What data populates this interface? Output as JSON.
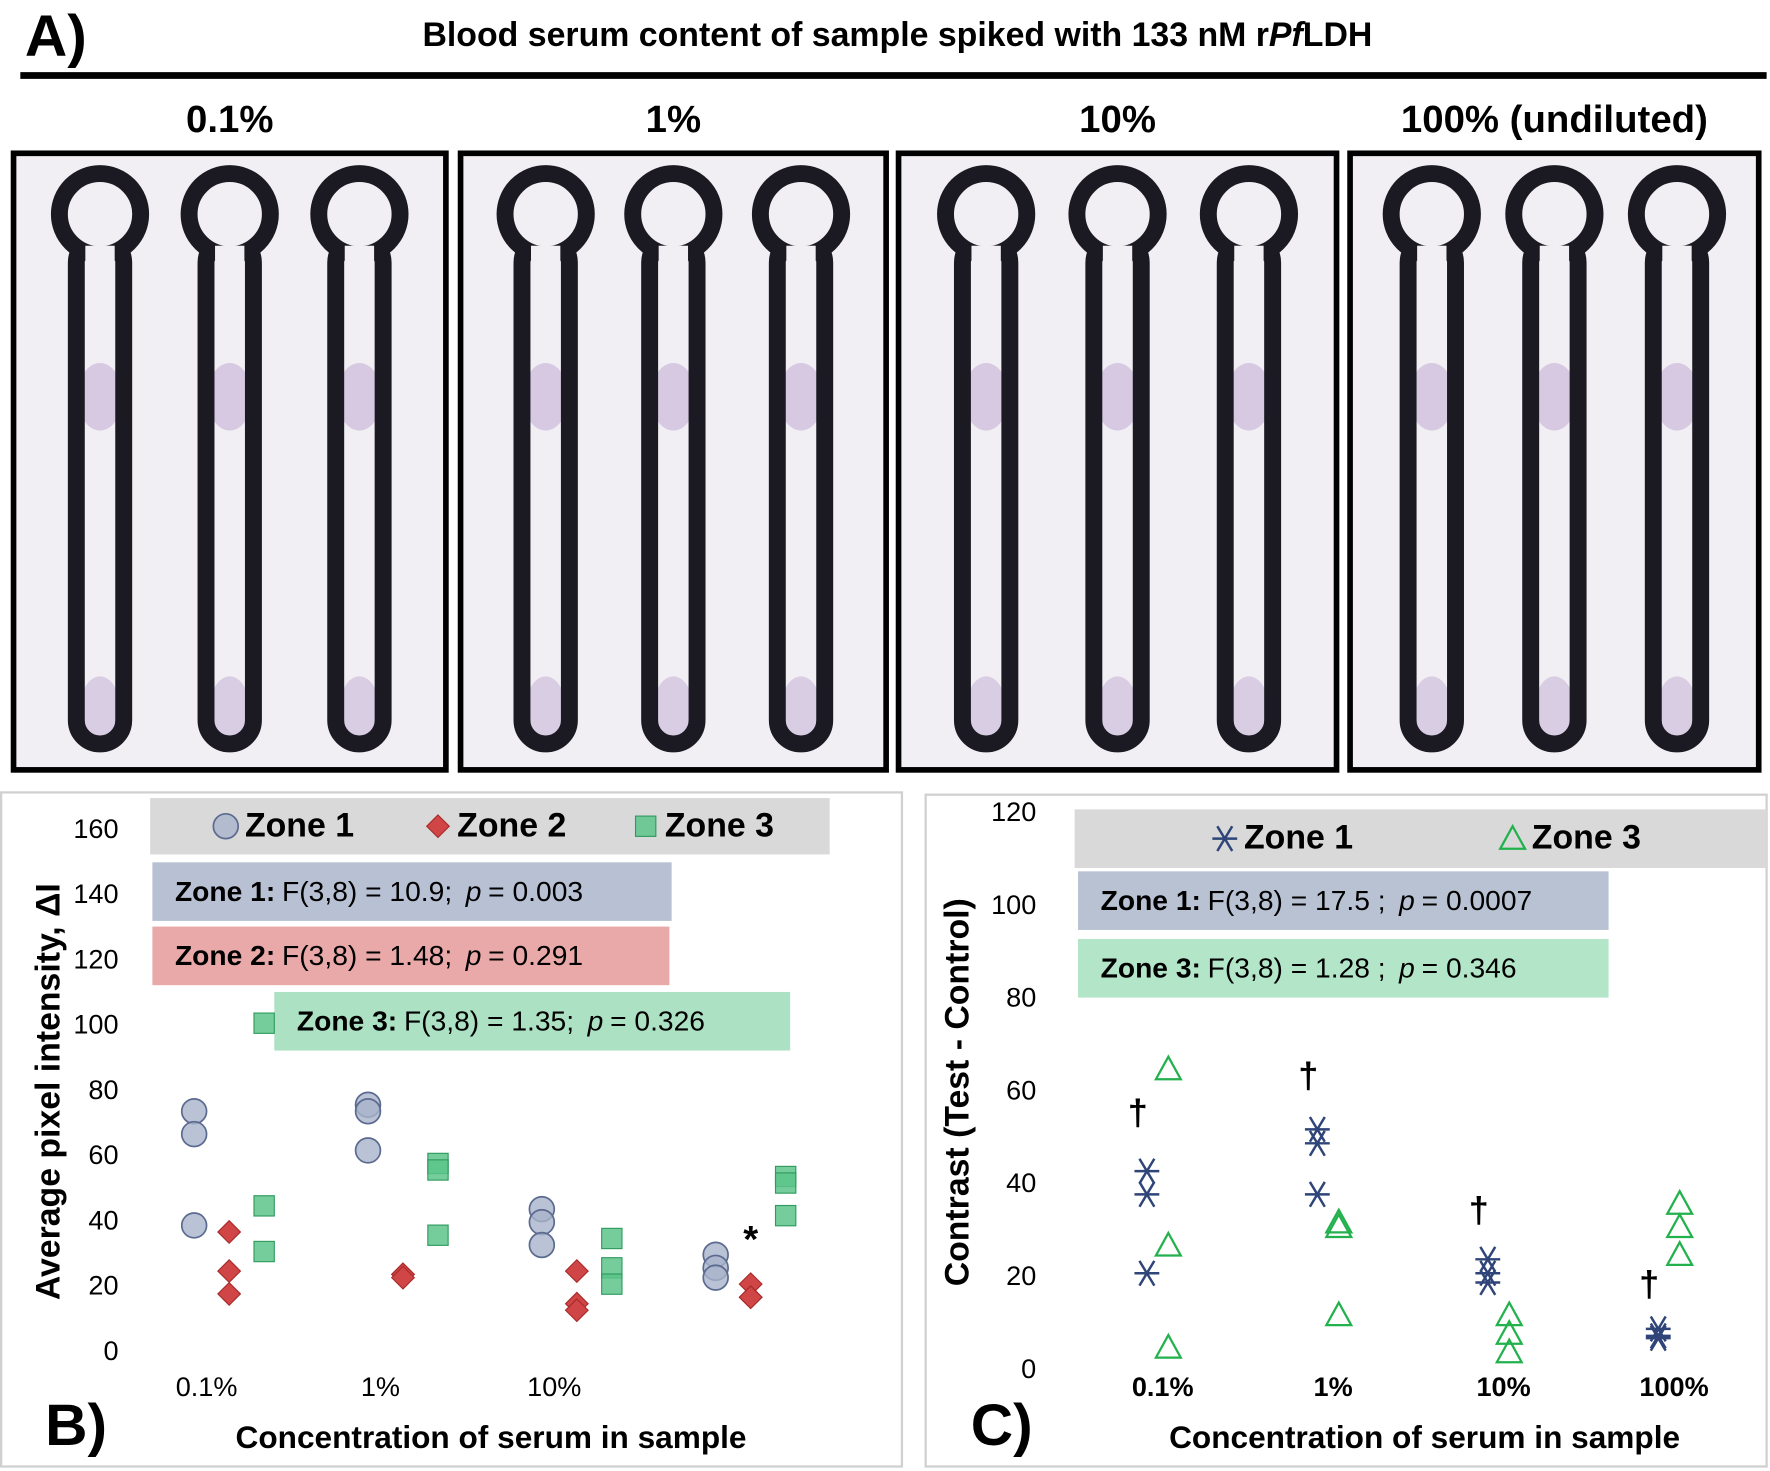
{
  "panel_a": {
    "label": "A)",
    "title_parts": [
      "Blood serum content of sample spiked with 133 nM r",
      "Pf",
      "LDH"
    ],
    "columns": [
      "0.1%",
      "1%",
      "10%",
      "100% (undiluted)"
    ]
  },
  "chart_data": [
    {
      "type": "scatter",
      "panel_label": "B)",
      "x_label": "Concentration of serum in sample",
      "y_label": "Average pixel intensity, ΔI",
      "categories": [
        "0.1%",
        "1%",
        "10%",
        null
      ],
      "ylim": [
        0,
        160
      ],
      "yticks": [
        0,
        20,
        40,
        60,
        80,
        100,
        120,
        140,
        160
      ],
      "series": [
        {
          "name": "Zone 1",
          "marker": "circle",
          "color": "#a9b3cb",
          "values": [
            [
              74,
              67,
              39
            ],
            [
              76,
              74,
              62
            ],
            [
              44,
              40,
              33
            ],
            [
              30,
              26,
              23
            ]
          ]
        },
        {
          "name": "Zone 2",
          "marker": "diamond",
          "color": "#d04545",
          "values": [
            [
              37,
              25,
              18
            ],
            [
              24,
              24,
              23
            ],
            [
              25,
              15,
              13
            ],
            [
              21,
              17,
              17
            ]
          ]
        },
        {
          "name": "Zone 3",
          "marker": "square",
          "color": "#5cc48a",
          "values": [
            [
              101,
              45,
              31
            ],
            [
              58,
              56,
              36
            ],
            [
              35,
              26,
              21
            ],
            [
              54,
              52,
              42
            ]
          ]
        }
      ],
      "stats": [
        {
          "zone": "Zone 1:",
          "text": "F(3,8) = 10.9;",
          "p": "p",
          "p_text": "= 0.003",
          "color": "#b8c1d4"
        },
        {
          "zone": "Zone 2:",
          "text": "F(3,8) =  1.48;",
          "p": "p",
          "p_text": "= 0.291",
          "color": "#eaa9a9"
        },
        {
          "zone": "Zone 3:",
          "text": "F(3,8) =  1.35;",
          "p": "p",
          "p_text": "= 0.326",
          "color": "#ace2c3"
        }
      ],
      "annotations": [
        {
          "text": "*",
          "y": 36
        }
      ]
    },
    {
      "type": "scatter",
      "panel_label": "C)",
      "x_label": "Concentration of serum in sample",
      "y_label": "Contrast (Test - Control)",
      "categories": [
        "0.1%",
        "1%",
        "10%",
        "100%"
      ],
      "ylim": [
        0,
        120
      ],
      "yticks": [
        0,
        20,
        40,
        60,
        80,
        100,
        120
      ],
      "series": [
        {
          "name": "Zone 1",
          "marker": "asterisk",
          "color": "#2f4478",
          "values": [
            [
              43,
              38,
              21
            ],
            [
              52,
              49,
              38
            ],
            [
              24,
              21,
              19
            ],
            [
              9,
              7.5,
              7
            ]
          ]
        },
        {
          "name": "Zone 3",
          "marker": "triangle",
          "color": "#22b14c",
          "values": [
            [
              65,
              27,
              5
            ],
            [
              32,
              31,
              12
            ],
            [
              12,
              8,
              4
            ],
            [
              36,
              31,
              25
            ]
          ]
        }
      ],
      "stats": [
        {
          "zone": "Zone 1:",
          "text": "F(3,8) = 17.5 ;",
          "p": "p",
          "p_text": "= 0.0007",
          "color": "#b9c2d3"
        },
        {
          "zone": "Zone 3:",
          "text": "F(3,8) =   1.28 ;",
          "p": "p",
          "p_text": "= 0.346",
          "color": "#b3e6c9"
        }
      ],
      "daggers": {
        "text": "†",
        "y": [
          55,
          63,
          34,
          18
        ]
      }
    }
  ]
}
